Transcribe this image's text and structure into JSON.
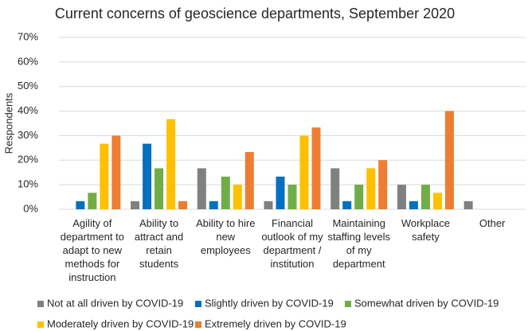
{
  "chart_data": {
    "type": "bar",
    "title": "Current concerns of geoscience departments, September 2020",
    "ylabel": "Respondents",
    "categories": [
      "Agility of department to adapt to new methods for instruction",
      "Ability to attract and retain students",
      "Ability to hire new employees",
      "Financial outlook of my department / institution",
      "Maintaining staffing levels of my department",
      "Workplace safety",
      "Other"
    ],
    "series": [
      {
        "name": "Not at all driven by COVID-19",
        "color": "#808080",
        "values": [
          0,
          3.3,
          16.7,
          3.3,
          16.7,
          10,
          3.3
        ]
      },
      {
        "name": "Slightly driven by COVID-19",
        "color": "#0070c0",
        "values": [
          3.3,
          26.7,
          3.3,
          13.3,
          3.3,
          3.3,
          0
        ]
      },
      {
        "name": "Somewhat driven by COVID-19",
        "color": "#70ad47",
        "values": [
          6.7,
          16.7,
          13.3,
          10,
          10,
          10,
          0
        ]
      },
      {
        "name": "Moderately driven by COVID-19",
        "color": "#ffc000",
        "values": [
          26.7,
          36.7,
          10,
          30,
          16.7,
          6.7,
          0
        ]
      },
      {
        "name": "Extremely driven by COVID-19",
        "color": "#ed7d31",
        "values": [
          30,
          3.3,
          23.3,
          33.3,
          20,
          40,
          0
        ]
      }
    ],
    "ylim": [
      0,
      70
    ],
    "yticks": [
      {
        "value": 0,
        "label": "0%"
      },
      {
        "value": 10,
        "label": "10%"
      },
      {
        "value": 20,
        "label": "20%"
      },
      {
        "value": 30,
        "label": "30%"
      },
      {
        "value": 40,
        "label": "40%"
      },
      {
        "value": 50,
        "label": "50%"
      },
      {
        "value": 60,
        "label": "60%"
      },
      {
        "value": 70,
        "label": "70%"
      }
    ],
    "grid": true,
    "legend": "bottom"
  }
}
